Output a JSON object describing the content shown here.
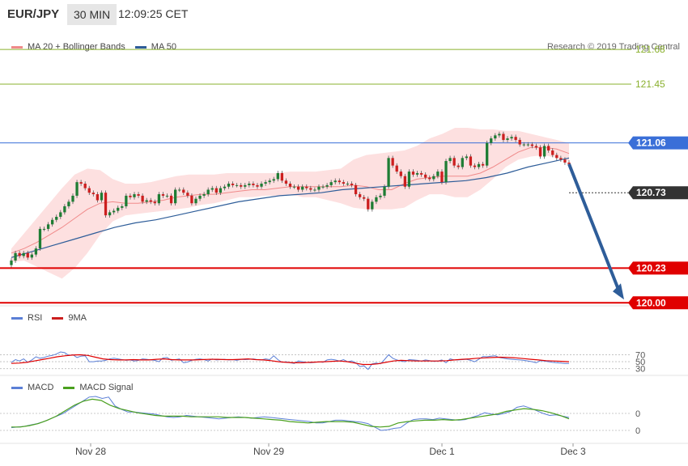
{
  "header": {
    "pair": "EUR/JPY",
    "interval": "30 MIN",
    "time": "12:09:25 CET"
  },
  "legend": {
    "ma20": "MA 20 + Bollinger Bands",
    "ma50": "MA 50",
    "credit": "Research © 2019 Trading Central",
    "rsi": "RSI",
    "rsi_ma": "9MA",
    "macd": "MACD",
    "macd_signal": "MACD Signal"
  },
  "colors": {
    "ma20": "#f08a8a",
    "ma50": "#2e5d99",
    "band": "#fde0e0",
    "support": "#e00000",
    "resistance": "#3a6fd8",
    "target": "#8ab02e",
    "bull": "#1e7d34",
    "bear": "#cc1f1f",
    "rsi": "#5b7fd6",
    "macd_signal": "#4aa01e",
    "arrow": "#2e5d99",
    "current": "#333333"
  },
  "chart_data": [
    {
      "type": "candlestick",
      "title": "EUR/JPY 30 MIN",
      "ylim": [
        119.98,
        121.82
      ],
      "x_labels": [
        "Nov 28",
        "Nov 29",
        "Dec 1",
        "Dec 3"
      ],
      "levels": [
        {
          "value": 121.68,
          "label": "121.68",
          "kind": "target"
        },
        {
          "value": 121.45,
          "label": "121.45",
          "kind": "target"
        },
        {
          "value": 121.06,
          "label": "121.06",
          "kind": "resistance"
        },
        {
          "value": 120.73,
          "label": "120.73",
          "kind": "current"
        },
        {
          "value": 120.23,
          "label": "120.23",
          "kind": "support"
        },
        {
          "value": 120.0,
          "label": "120.00",
          "kind": "support"
        }
      ],
      "close": [
        120.28,
        120.33,
        120.31,
        120.33,
        120.3,
        120.32,
        120.36,
        120.49,
        120.49,
        120.52,
        120.55,
        120.57,
        120.6,
        120.64,
        120.67,
        120.71,
        120.8,
        120.79,
        120.76,
        120.73,
        120.72,
        120.68,
        120.73,
        120.58,
        120.6,
        120.61,
        120.63,
        120.64,
        120.71,
        120.7,
        120.72,
        120.71,
        120.67,
        120.68,
        120.67,
        120.66,
        120.72,
        120.71,
        120.71,
        120.66,
        120.75,
        120.75,
        120.73,
        120.71,
        120.66,
        120.69,
        120.71,
        120.72,
        120.75,
        120.76,
        120.73,
        120.76,
        120.77,
        120.79,
        120.78,
        120.78,
        120.77,
        120.78,
        120.79,
        120.78,
        120.77,
        120.79,
        120.8,
        120.81,
        120.82,
        120.86,
        120.81,
        120.79,
        120.77,
        120.77,
        120.75,
        120.77,
        120.76,
        120.75,
        120.75,
        120.77,
        120.77,
        120.78,
        120.8,
        120.81,
        120.8,
        120.79,
        120.79,
        120.78,
        120.72,
        120.7,
        120.69,
        120.62,
        120.67,
        120.7,
        120.71,
        120.77,
        120.96,
        120.91,
        120.87,
        120.84,
        120.77,
        120.87,
        120.85,
        120.86,
        120.85,
        120.83,
        120.82,
        120.84,
        120.87,
        120.8,
        120.94,
        120.96,
        120.91,
        120.9,
        120.96,
        120.97,
        120.91,
        120.9,
        120.92,
        120.91,
        121.06,
        121.09,
        121.11,
        121.12,
        121.08,
        121.09,
        121.1,
        121.08,
        121.05,
        121.05,
        121.05,
        121.04,
        121.03,
        120.97,
        121.04,
        121.01,
        120.98,
        120.96,
        120.95,
        120.93,
        120.92
      ],
      "ma20_points": [
        120.33,
        120.36,
        120.4,
        120.45,
        120.5,
        120.56,
        120.62,
        120.66,
        120.67,
        120.66,
        120.66,
        120.67,
        120.68,
        120.7,
        120.71,
        120.72,
        120.72,
        120.73,
        120.74,
        120.75,
        120.75,
        120.76,
        120.77,
        120.77,
        120.77,
        120.77,
        120.77,
        120.78,
        120.77,
        120.75,
        120.75,
        120.79,
        120.82,
        120.83,
        120.84,
        120.84,
        120.84,
        120.86,
        120.9,
        120.95,
        121.0,
        121.03,
        121.03,
        121.02,
        120.99
      ],
      "ma50_points": [
        120.3,
        120.34,
        120.38,
        120.42,
        120.46,
        120.5,
        120.53,
        120.55,
        120.58,
        120.61,
        120.64,
        120.67,
        120.69,
        120.71,
        120.72,
        120.73,
        120.75,
        120.76,
        120.77,
        120.78,
        120.79,
        120.8,
        120.81,
        120.83,
        120.86,
        120.9,
        120.93,
        120.96
      ],
      "band_upper": [
        120.36,
        120.46,
        120.56,
        120.66,
        120.76,
        120.85,
        120.89,
        120.88,
        120.82,
        120.79,
        120.79,
        120.8,
        120.82,
        120.84,
        120.85,
        120.85,
        120.85,
        120.86,
        120.86,
        120.86,
        120.86,
        120.86,
        120.87,
        120.87,
        120.87,
        120.88,
        120.89,
        120.95,
        120.98,
        120.99,
        121.0,
        121.01,
        121.04,
        121.09,
        121.12,
        121.16,
        121.16,
        121.15,
        121.15,
        121.14,
        121.14,
        121.12,
        121.1,
        121.08,
        121.06
      ],
      "band_lower": [
        120.27,
        120.28,
        120.24,
        120.2,
        120.16,
        120.23,
        120.33,
        120.45,
        120.54,
        120.58,
        120.59,
        120.6,
        120.61,
        120.62,
        120.63,
        120.65,
        120.66,
        120.68,
        120.7,
        120.7,
        120.71,
        120.71,
        120.72,
        120.7,
        120.7,
        120.68,
        120.66,
        120.63,
        120.62,
        120.62,
        120.62,
        120.63,
        120.68,
        120.72,
        120.72,
        120.7,
        120.7,
        120.75,
        120.82,
        120.9,
        120.95,
        120.97,
        120.98,
        120.96,
        120.94
      ]
    },
    {
      "type": "line",
      "title": "RSI",
      "ylim": [
        20,
        85
      ],
      "yticks": [
        30,
        50,
        70
      ],
      "series": [
        {
          "name": "RSI",
          "values": [
            48,
            56,
            52,
            58,
            48,
            55,
            64,
            60,
            62,
            66,
            68,
            72,
            78,
            76,
            68,
            70,
            62,
            66,
            67,
            50,
            50,
            52,
            52,
            54,
            58,
            60,
            58,
            56,
            54,
            55,
            52,
            54,
            58,
            57,
            55,
            54,
            50,
            61,
            62,
            54,
            56,
            58,
            47,
            49,
            54,
            57,
            58,
            56,
            52,
            58,
            55,
            56,
            57,
            55,
            56,
            54,
            57,
            56,
            57,
            58,
            56,
            55,
            58,
            56,
            67,
            56,
            48,
            50,
            47,
            45,
            52,
            50,
            48,
            47,
            48,
            50,
            48,
            55,
            57,
            55,
            52,
            56,
            50,
            52,
            47,
            36,
            38,
            28,
            44,
            46,
            44,
            56,
            70,
            60,
            55,
            52,
            50,
            56,
            55,
            54,
            52,
            55,
            53,
            51,
            52,
            55,
            47,
            58,
            55,
            55,
            56,
            57,
            54,
            50,
            57,
            65,
            64,
            66,
            67,
            62,
            60,
            58,
            57,
            56,
            55,
            54,
            52,
            50,
            47,
            53,
            52,
            50,
            48,
            47,
            46,
            45,
            45
          ]
        },
        {
          "name": "9MA",
          "values": [
            45,
            46,
            48,
            52,
            56,
            60,
            64,
            67,
            69,
            70,
            68,
            63,
            58,
            56,
            55,
            55,
            56,
            55,
            55,
            57,
            58,
            56,
            55,
            55,
            55,
            56,
            57,
            57,
            56,
            56,
            57,
            58,
            56,
            55,
            53,
            50,
            48,
            47,
            47,
            48,
            49,
            50,
            51,
            52,
            50,
            46,
            42,
            42,
            44,
            48,
            52,
            54,
            53,
            52,
            52,
            52,
            52,
            53,
            55,
            57,
            58,
            60,
            61,
            62,
            63,
            62,
            61,
            59,
            57,
            55,
            53,
            52,
            51,
            50
          ]
        }
      ]
    },
    {
      "type": "line",
      "title": "MACD",
      "yticks": [
        0,
        0
      ],
      "series": [
        {
          "name": "MACD",
          "values": [
            -0.05,
            -0.04,
            -0.03,
            -0.01,
            0.01,
            0.04,
            0.08,
            0.12,
            0.16,
            0.22,
            0.28,
            0.34,
            0.4,
            0.41,
            0.38,
            0.4,
            0.27,
            0.22,
            0.18,
            0.18,
            0.17,
            0.16,
            0.15,
            0.13,
            0.11,
            0.1,
            0.11,
            0.13,
            0.12,
            0.11,
            0.1,
            0.09,
            0.08,
            0.09,
            0.1,
            0.11,
            0.1,
            0.09,
            0.1,
            0.11,
            0.1,
            0.09,
            0.08,
            0.07,
            0.06,
            0.05,
            0.04,
            0.02,
            0.02,
            0.04,
            0.06,
            0.06,
            0.05,
            0.04,
            0.03,
            0.01,
            -0.04,
            -0.09,
            -0.08,
            -0.06,
            -0.05,
            0.02,
            0.07,
            0.08,
            0.08,
            0.07,
            0.09,
            0.08,
            0.07,
            0.06,
            0.07,
            0.1,
            0.13,
            0.17,
            0.15,
            0.14,
            0.16,
            0.19,
            0.25,
            0.27,
            0.24,
            0.2,
            0.16,
            0.13,
            0.14,
            0.12,
            0.1
          ]
        },
        {
          "name": "MACD Signal",
          "values": [
            -0.04,
            -0.04,
            -0.02,
            0.01,
            0.06,
            0.12,
            0.2,
            0.28,
            0.34,
            0.37,
            0.35,
            0.28,
            0.23,
            0.2,
            0.17,
            0.15,
            0.13,
            0.12,
            0.12,
            0.12,
            0.11,
            0.11,
            0.11,
            0.11,
            0.1,
            0.1,
            0.1,
            0.09,
            0.08,
            0.07,
            0.06,
            0.04,
            0.03,
            0.02,
            0.03,
            0.04,
            0.04,
            0.04,
            0.03,
            0.0,
            -0.03,
            -0.04,
            -0.03,
            0.02,
            0.04,
            0.05,
            0.06,
            0.06,
            0.07,
            0.06,
            0.07,
            0.09,
            0.11,
            0.13,
            0.15,
            0.19,
            0.21,
            0.23,
            0.22,
            0.2,
            0.17,
            0.13,
            0.08
          ]
        }
      ]
    }
  ]
}
